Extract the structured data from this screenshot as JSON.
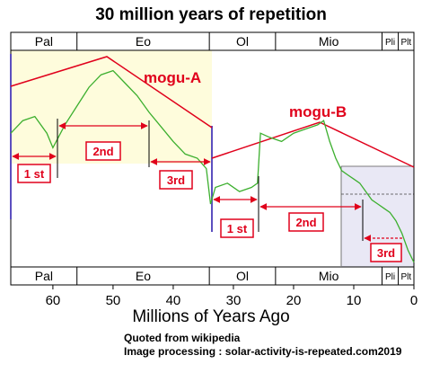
{
  "chart_data": {
    "type": "line",
    "title": "30 million years of repetition",
    "xlabel": "Millions of Years Ago",
    "ylabel": "",
    "xlim": [
      67,
      0
    ],
    "ylim": [
      0,
      1
    ],
    "x_ticks": [
      60,
      50,
      40,
      30,
      20,
      10,
      0
    ],
    "epochs": [
      {
        "label": "Pal",
        "start": 67,
        "end": 56
      },
      {
        "label": "Eo",
        "start": 56,
        "end": 34
      },
      {
        "label": "Ol",
        "start": 34,
        "end": 23
      },
      {
        "label": "Mio",
        "start": 23,
        "end": 5.3
      },
      {
        "label": "Pli",
        "start": 5.3,
        "end": 2.6
      },
      {
        "label": "Plt",
        "start": 2.6,
        "end": 0
      }
    ],
    "series": [
      {
        "color": "#3caf2e",
        "x": [
          67,
          65,
          63,
          61,
          60,
          58,
          56,
          54,
          52,
          50,
          48,
          46,
          44,
          42,
          40,
          38,
          36,
          34.5,
          33.8,
          33,
          31,
          29,
          27,
          26,
          25.5,
          24,
          22,
          20,
          18,
          16,
          15,
          14,
          13,
          12,
          11,
          10,
          9,
          8,
          7,
          6,
          5,
          4,
          3,
          2,
          1,
          0
        ],
        "values": [
          0.62,
          0.68,
          0.7,
          0.62,
          0.55,
          0.66,
          0.75,
          0.84,
          0.9,
          0.92,
          0.86,
          0.8,
          0.72,
          0.65,
          0.58,
          0.52,
          0.5,
          0.45,
          0.28,
          0.36,
          0.38,
          0.34,
          0.36,
          0.38,
          0.62,
          0.6,
          0.58,
          0.62,
          0.64,
          0.66,
          0.68,
          0.58,
          0.5,
          0.44,
          0.42,
          0.4,
          0.38,
          0.34,
          0.3,
          0.28,
          0.26,
          0.24,
          0.2,
          0.14,
          0.06,
          0.0
        ]
      }
    ],
    "annotations": {
      "peaks": [
        "mogu-A",
        "mogu-B"
      ],
      "phases_a": [
        "1 st",
        "2nd",
        "3rd"
      ],
      "phases_b": [
        "1 st",
        "2nd",
        "3rd"
      ]
    }
  },
  "credits": {
    "line1": "Quoted from wikipedia",
    "line2": "Image processing : solar-activity-is-repeated.com2019"
  },
  "colors": {
    "curve": "#3caf2e",
    "annotation": "#e0001b",
    "marker_line": "#5c4fbf",
    "highlight_a": "#fefcdc",
    "highlight_b": "#e9e8f5"
  }
}
